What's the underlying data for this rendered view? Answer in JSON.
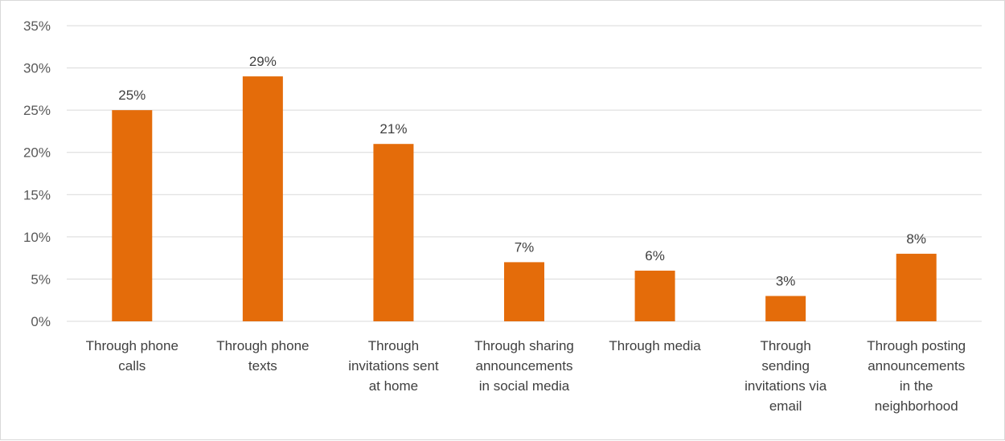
{
  "chart_data": {
    "type": "bar",
    "title": "",
    "xlabel": "",
    "ylabel": "",
    "ylim": [
      0,
      35
    ],
    "yticks": [
      "0%",
      "5%",
      "10%",
      "15%",
      "20%",
      "25%",
      "30%",
      "35%"
    ],
    "grid": true,
    "legend": "none",
    "bar_color": "#E46C0A",
    "categories": [
      [
        "Through phone",
        "calls"
      ],
      [
        "Through phone",
        "texts"
      ],
      [
        "Through",
        "invitations sent",
        "at home"
      ],
      [
        "Through sharing",
        "announcements",
        "in social media"
      ],
      [
        "Through media"
      ],
      [
        "Through",
        "sending",
        "invitations via",
        "email"
      ],
      [
        "Through posting",
        "announcements",
        "in the",
        "neighborhood"
      ]
    ],
    "values": [
      25,
      29,
      21,
      7,
      6,
      3,
      8
    ],
    "data_labels": [
      "25%",
      "29%",
      "21%",
      "7%",
      "6%",
      "3%",
      "8%"
    ]
  }
}
